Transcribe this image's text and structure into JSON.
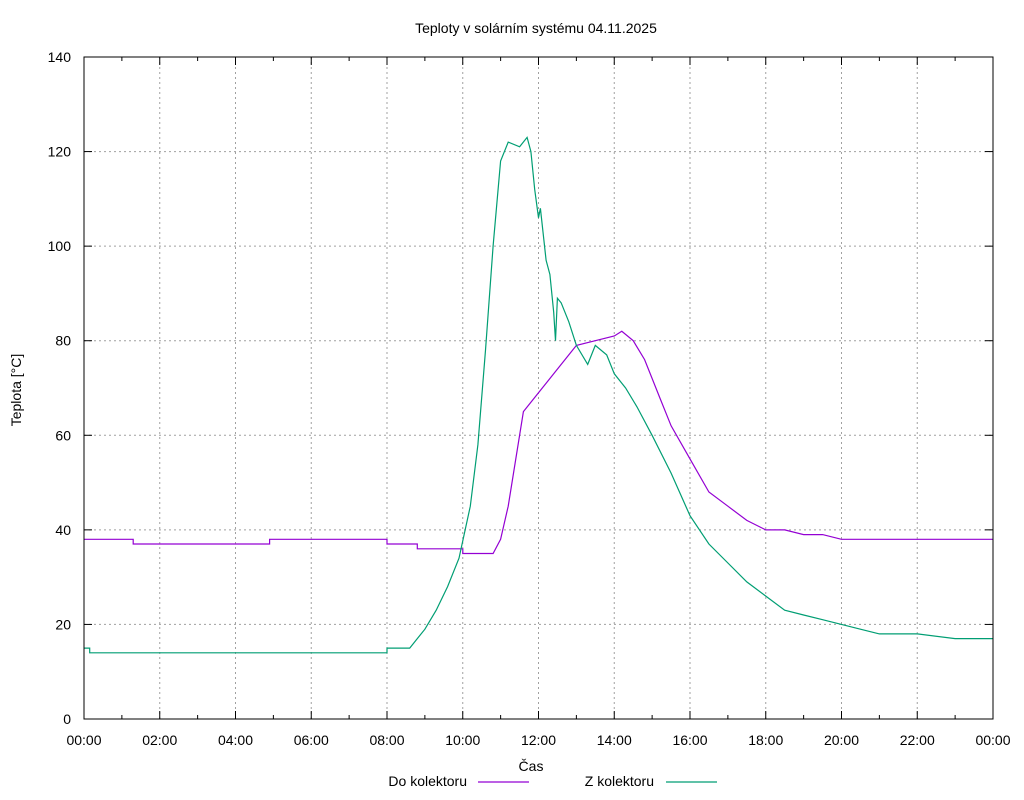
{
  "chart_data": {
    "type": "line",
    "title": "Teploty v solárním systému 04.11.2025",
    "xlabel": "Čas",
    "ylabel": "Teplota [°C]",
    "xlim": [
      0,
      24
    ],
    "ylim": [
      0,
      140
    ],
    "grid": true,
    "legend_position": "bottom",
    "x_ticks": [
      0,
      2,
      4,
      6,
      8,
      10,
      12,
      14,
      16,
      18,
      20,
      22,
      24
    ],
    "x_tick_labels": [
      "00:00",
      "02:00",
      "04:00",
      "06:00",
      "08:00",
      "10:00",
      "12:00",
      "14:00",
      "16:00",
      "18:00",
      "20:00",
      "22:00",
      "00:00"
    ],
    "y_ticks": [
      0,
      20,
      40,
      60,
      80,
      100,
      120,
      140
    ],
    "y_tick_labels": [
      "0",
      "20",
      "40",
      "60",
      "80",
      "100",
      "120",
      "140"
    ],
    "series": [
      {
        "name": "Do kolektoru",
        "color": "#9400d3",
        "x": [
          0,
          1.3,
          1.3,
          4.9,
          4.9,
          8.0,
          8.0,
          8.8,
          8.8,
          10.0,
          10.0,
          10.8,
          11.0,
          11.2,
          11.4,
          11.6,
          11.9,
          12.1,
          12.4,
          12.7,
          13.0,
          13.5,
          14.0,
          14.2,
          14.5,
          14.8,
          15.2,
          15.5,
          16.0,
          16.5,
          17.0,
          17.5,
          18.0,
          18.5,
          19.0,
          19.5,
          20.0,
          22.0,
          24.0
        ],
        "y": [
          38,
          38,
          37,
          37,
          38,
          38,
          37,
          37,
          36,
          36,
          35,
          35,
          38,
          45,
          55,
          65,
          68,
          70,
          73,
          76,
          79,
          80,
          81,
          82,
          80,
          76,
          68,
          62,
          55,
          48,
          45,
          42,
          40,
          40,
          39,
          39,
          38,
          38,
          38
        ]
      },
      {
        "name": "Z kolektoru",
        "color": "#009e73",
        "x": [
          0,
          0.15,
          0.15,
          8.0,
          8.0,
          8.6,
          8.8,
          9.0,
          9.3,
          9.6,
          9.9,
          10.2,
          10.4,
          10.6,
          10.8,
          11.0,
          11.2,
          11.5,
          11.7,
          11.8,
          11.9,
          12.0,
          12.05,
          12.2,
          12.3,
          12.4,
          12.45,
          12.5,
          12.6,
          12.8,
          13.0,
          13.3,
          13.5,
          13.8,
          14.0,
          14.3,
          14.6,
          15.0,
          15.5,
          16.0,
          16.5,
          17.0,
          17.5,
          18.0,
          18.5,
          19.0,
          19.5,
          20.0,
          20.5,
          21.0,
          21.5,
          22.0,
          23.0,
          24.0
        ],
        "y": [
          15,
          15,
          14,
          14,
          15,
          15,
          17,
          19,
          23,
          28,
          34,
          45,
          58,
          78,
          100,
          118,
          122,
          121,
          123,
          120,
          112,
          106,
          108,
          97,
          94,
          86,
          80,
          89,
          88,
          84,
          79,
          75,
          79,
          77,
          73,
          70,
          66,
          60,
          52,
          43,
          37,
          33,
          29,
          26,
          23,
          22,
          21,
          20,
          19,
          18,
          18,
          18,
          17,
          17
        ]
      }
    ]
  }
}
